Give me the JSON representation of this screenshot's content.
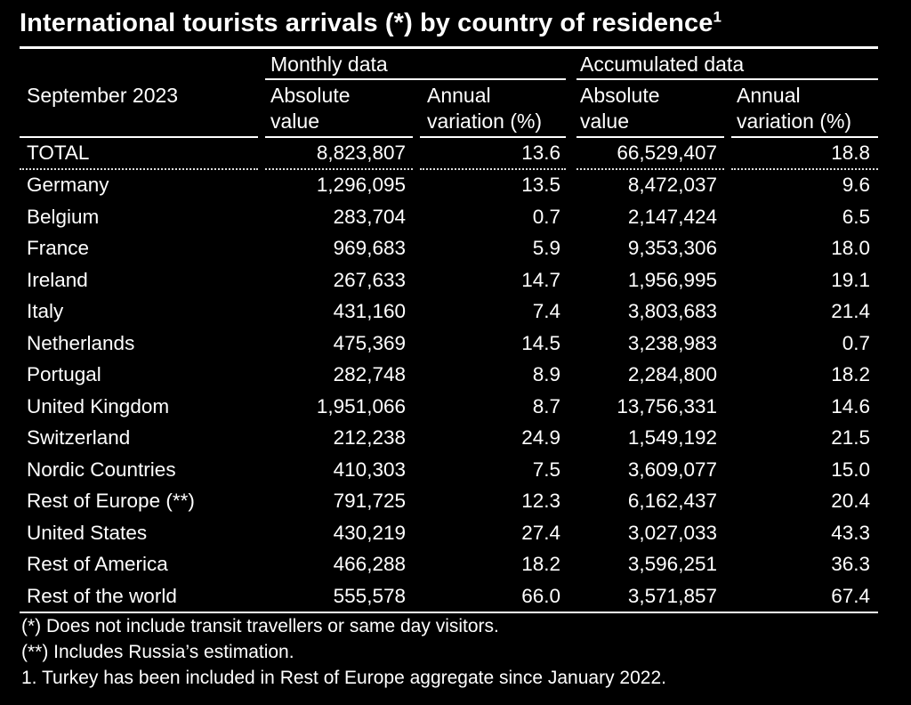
{
  "title": "International tourists arrivals (*) by country of residence",
  "title_sup": "1",
  "header": {
    "period": "September 2023",
    "group_monthly": "Monthly data",
    "group_accumulated": "Accumulated data",
    "abs_line1": "Absolute",
    "abs_line2": "value",
    "var_line1": "Annual",
    "var_line2": "variation (%)"
  },
  "total": {
    "name": "TOTAL",
    "m_abs": "8,823,807",
    "m_var": "13.6",
    "a_abs": "66,529,407",
    "a_var": "18.8"
  },
  "rows": [
    {
      "name": "Germany",
      "m_abs": "1,296,095",
      "m_var": "13.5",
      "a_abs": "8,472,037",
      "a_var": "9.6"
    },
    {
      "name": "Belgium",
      "m_abs": "283,704",
      "m_var": "0.7",
      "a_abs": "2,147,424",
      "a_var": "6.5"
    },
    {
      "name": "France",
      "m_abs": "969,683",
      "m_var": "5.9",
      "a_abs": "9,353,306",
      "a_var": "18.0"
    },
    {
      "name": "Ireland",
      "m_abs": "267,633",
      "m_var": "14.7",
      "a_abs": "1,956,995",
      "a_var": "19.1"
    },
    {
      "name": "Italy",
      "m_abs": "431,160",
      "m_var": "7.4",
      "a_abs": "3,803,683",
      "a_var": "21.4"
    },
    {
      "name": "Netherlands",
      "m_abs": "475,369",
      "m_var": "14.5",
      "a_abs": "3,238,983",
      "a_var": "0.7"
    },
    {
      "name": "Portugal",
      "m_abs": "282,748",
      "m_var": "8.9",
      "a_abs": "2,284,800",
      "a_var": "18.2"
    },
    {
      "name": "United Kingdom",
      "m_abs": "1,951,066",
      "m_var": "8.7",
      "a_abs": "13,756,331",
      "a_var": "14.6"
    },
    {
      "name": "Switzerland",
      "m_abs": "212,238",
      "m_var": "24.9",
      "a_abs": "1,549,192",
      "a_var": "21.5"
    },
    {
      "name": "Nordic Countries",
      "m_abs": "410,303",
      "m_var": "7.5",
      "a_abs": "3,609,077",
      "a_var": "15.0"
    },
    {
      "name": "Rest of Europe (**)",
      "m_abs": "791,725",
      "m_var": "12.3",
      "a_abs": "6,162,437",
      "a_var": "20.4"
    },
    {
      "name": "United States",
      "m_abs": "430,219",
      "m_var": "27.4",
      "a_abs": "3,027,033",
      "a_var": "43.3"
    },
    {
      "name": "Rest of America",
      "m_abs": "466,288",
      "m_var": "18.2",
      "a_abs": "3,596,251",
      "a_var": "36.3"
    },
    {
      "name": "Rest of the world",
      "m_abs": "555,578",
      "m_var": "66.0",
      "a_abs": "3,571,857",
      "a_var": "67.4"
    }
  ],
  "notes": [
    "(*) Does not include transit travellers or same day visitors.",
    "(**) Includes Russia’s estimation.",
    "1. Turkey has been included in Rest of Europe aggregate since January 2022."
  ]
}
